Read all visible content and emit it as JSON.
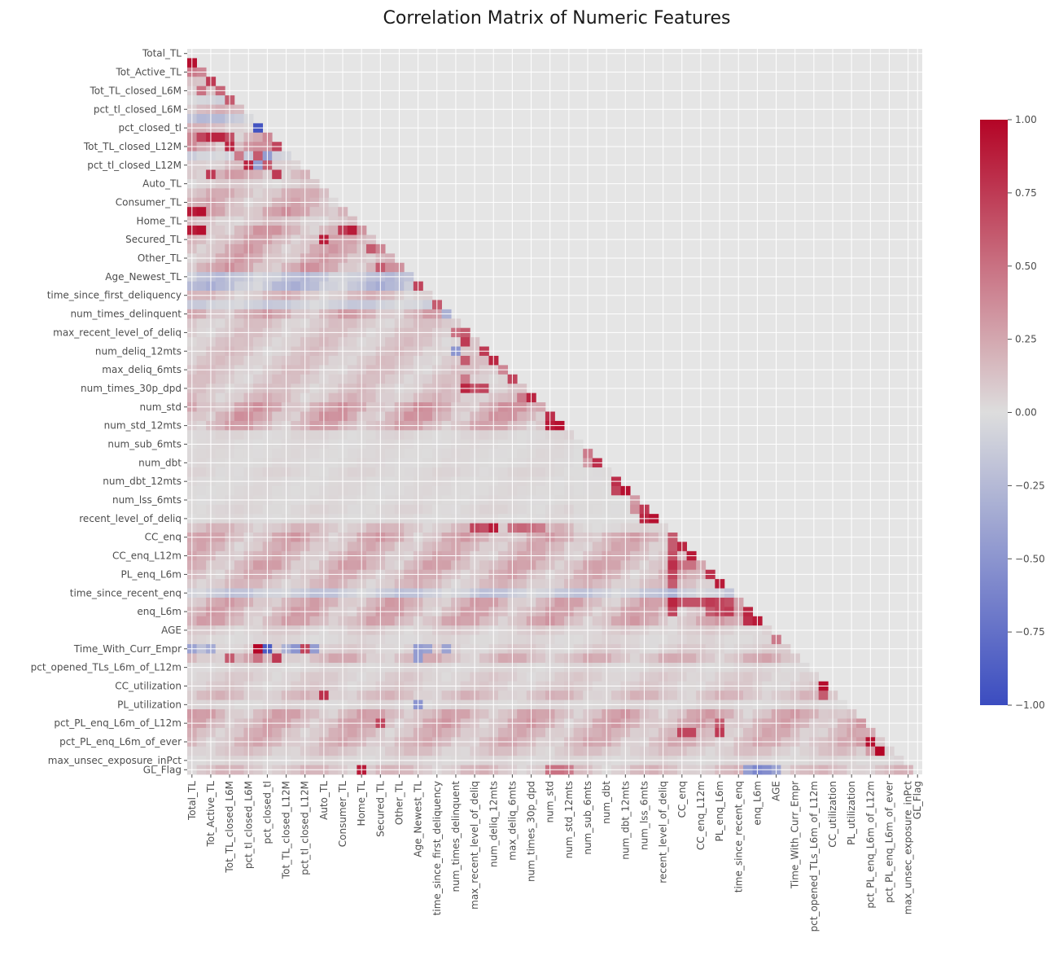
{
  "chart_data": {
    "type": "heatmap",
    "title": "Correlation Matrix of Numeric Features",
    "mask": "upper-triangle",
    "n_features": 78,
    "grid": true,
    "vmin": -1.0,
    "vmax": 1.0,
    "colormap": "coolwarm",
    "colors": {
      "low": "#3b4cc0",
      "mid": "#dddddd",
      "high": "#b40426",
      "background": "#e5e5e5"
    },
    "colorbar": {
      "ticks": [
        1.0,
        0.75,
        0.5,
        0.25,
        0.0,
        -0.25,
        -0.5,
        -0.75,
        -1.0
      ],
      "tick_labels": [
        "1.00",
        "0.75",
        "0.50",
        "0.25",
        "0.00",
        "−0.25",
        "−0.50",
        "−0.75",
        "−1.00"
      ]
    },
    "visible_labels": [
      {
        "index": 0,
        "name": "Total_TL"
      },
      {
        "index": 2,
        "name": "Tot_Active_TL"
      },
      {
        "index": 4,
        "name": "Tot_TL_closed_L6M"
      },
      {
        "index": 6,
        "name": "pct_tl_closed_L6M"
      },
      {
        "index": 8,
        "name": "pct_closed_tl"
      },
      {
        "index": 10,
        "name": "Tot_TL_closed_L12M"
      },
      {
        "index": 12,
        "name": "pct_tl_closed_L12M"
      },
      {
        "index": 14,
        "name": "Auto_TL"
      },
      {
        "index": 16,
        "name": "Consumer_TL"
      },
      {
        "index": 18,
        "name": "Home_TL"
      },
      {
        "index": 20,
        "name": "Secured_TL"
      },
      {
        "index": 22,
        "name": "Other_TL"
      },
      {
        "index": 24,
        "name": "Age_Newest_TL"
      },
      {
        "index": 26,
        "name": "time_since_first_deliquency"
      },
      {
        "index": 28,
        "name": "num_times_delinquent"
      },
      {
        "index": 30,
        "name": "max_recent_level_of_deliq"
      },
      {
        "index": 32,
        "name": "num_deliq_12mts"
      },
      {
        "index": 34,
        "name": "max_deliq_6mts"
      },
      {
        "index": 36,
        "name": "num_times_30p_dpd"
      },
      {
        "index": 38,
        "name": "num_std"
      },
      {
        "index": 40,
        "name": "num_std_12mts"
      },
      {
        "index": 42,
        "name": "num_sub_6mts"
      },
      {
        "index": 44,
        "name": "num_dbt"
      },
      {
        "index": 46,
        "name": "num_dbt_12mts"
      },
      {
        "index": 48,
        "name": "num_lss_6mts"
      },
      {
        "index": 50,
        "name": "recent_level_of_deliq"
      },
      {
        "index": 52,
        "name": "CC_enq"
      },
      {
        "index": 54,
        "name": "CC_enq_L12m"
      },
      {
        "index": 56,
        "name": "PL_enq_L6m"
      },
      {
        "index": 58,
        "name": "time_since_recent_enq"
      },
      {
        "index": 60,
        "name": "enq_L6m"
      },
      {
        "index": 62,
        "name": "AGE"
      },
      {
        "index": 64,
        "name": "Time_With_Curr_Empr"
      },
      {
        "index": 66,
        "name": "pct_opened_TLs_L6m_of_L12m"
      },
      {
        "index": 68,
        "name": "CC_utilization"
      },
      {
        "index": 70,
        "name": "PL_utilization"
      },
      {
        "index": 72,
        "name": "pct_PL_enq_L6m_of_L12m"
      },
      {
        "index": 74,
        "name": "pct_PL_enq_L6m_of_ever"
      },
      {
        "index": 76,
        "name": "max_unsec_exposure_inPct"
      },
      {
        "index": 77,
        "name": "GL_Flag"
      }
    ],
    "strong_cells": [
      {
        "row": 1,
        "col": 0,
        "value": 0.95
      },
      {
        "row": 2,
        "col": 0,
        "value": 0.45
      },
      {
        "row": 2,
        "col": 1,
        "value": 0.4
      },
      {
        "row": 3,
        "col": 2,
        "value": 0.75
      },
      {
        "row": 4,
        "col": 1,
        "value": 0.5
      },
      {
        "row": 4,
        "col": 3,
        "value": 0.55
      },
      {
        "row": 5,
        "col": 4,
        "value": 0.6
      },
      {
        "row": 8,
        "col": 7,
        "value": -0.95
      },
      {
        "row": 9,
        "col": 1,
        "value": 0.7
      },
      {
        "row": 9,
        "col": 2,
        "value": 0.85
      },
      {
        "row": 9,
        "col": 3,
        "value": 0.85
      },
      {
        "row": 9,
        "col": 4,
        "value": 0.65
      },
      {
        "row": 10,
        "col": 4,
        "value": 0.85
      },
      {
        "row": 10,
        "col": 9,
        "value": 0.7
      },
      {
        "row": 11,
        "col": 5,
        "value": 0.45
      },
      {
        "row": 11,
        "col": 7,
        "value": 0.6
      },
      {
        "row": 11,
        "col": 8,
        "value": -0.45
      },
      {
        "row": 12,
        "col": 6,
        "value": 0.85
      },
      {
        "row": 12,
        "col": 7,
        "value": -0.45
      },
      {
        "row": 12,
        "col": 8,
        "value": 0.6
      },
      {
        "row": 13,
        "col": 2,
        "value": 0.75
      },
      {
        "row": 13,
        "col": 9,
        "value": 0.75
      },
      {
        "row": 17,
        "col": 0,
        "value": 0.9
      },
      {
        "row": 17,
        "col": 1,
        "value": 0.95
      },
      {
        "row": 19,
        "col": 0,
        "value": 0.9
      },
      {
        "row": 19,
        "col": 1,
        "value": 0.95
      },
      {
        "row": 19,
        "col": 16,
        "value": 0.75
      },
      {
        "row": 19,
        "col": 17,
        "value": 0.9
      },
      {
        "row": 20,
        "col": 14,
        "value": 0.9
      },
      {
        "row": 21,
        "col": 19,
        "value": 0.6
      },
      {
        "row": 21,
        "col": 20,
        "value": 0.4
      },
      {
        "row": 23,
        "col": 20,
        "value": 0.6
      },
      {
        "row": 25,
        "col": 24,
        "value": 0.7
      },
      {
        "row": 27,
        "col": 26,
        "value": 0.6
      },
      {
        "row": 28,
        "col": 27,
        "value": -0.3
      },
      {
        "row": 30,
        "col": 29,
        "value": 0.6
      },
      {
        "row": 30,
        "col": 28,
        "value": 0.5
      },
      {
        "row": 31,
        "col": 29,
        "value": 0.75
      },
      {
        "row": 32,
        "col": 31,
        "value": 0.75
      },
      {
        "row": 32,
        "col": 28,
        "value": -0.5
      },
      {
        "row": 33,
        "col": 32,
        "value": 0.85
      },
      {
        "row": 33,
        "col": 29,
        "value": 0.6
      },
      {
        "row": 34,
        "col": 33,
        "value": 0.4
      },
      {
        "row": 35,
        "col": 29,
        "value": 0.45
      },
      {
        "row": 35,
        "col": 34,
        "value": 0.7
      },
      {
        "row": 36,
        "col": 29,
        "value": 0.85
      },
      {
        "row": 36,
        "col": 30,
        "value": 0.65
      },
      {
        "row": 36,
        "col": 31,
        "value": 0.7
      },
      {
        "row": 37,
        "col": 36,
        "value": 0.85
      },
      {
        "row": 37,
        "col": 35,
        "value": 0.45
      },
      {
        "row": 38,
        "col": 37,
        "value": 0.25
      },
      {
        "row": 39,
        "col": 38,
        "value": 0.8
      },
      {
        "row": 40,
        "col": 38,
        "value": 0.9
      },
      {
        "row": 40,
        "col": 39,
        "value": 0.95
      },
      {
        "row": 43,
        "col": 42,
        "value": 0.45
      },
      {
        "row": 44,
        "col": 42,
        "value": 0.3
      },
      {
        "row": 44,
        "col": 43,
        "value": 0.8
      },
      {
        "row": 46,
        "col": 45,
        "value": 0.8
      },
      {
        "row": 47,
        "col": 46,
        "value": 0.95
      },
      {
        "row": 47,
        "col": 45,
        "value": 0.7
      },
      {
        "row": 48,
        "col": 47,
        "value": 0.3
      },
      {
        "row": 49,
        "col": 48,
        "value": 0.75
      },
      {
        "row": 49,
        "col": 47,
        "value": 0.35
      },
      {
        "row": 50,
        "col": 48,
        "value": 0.85
      },
      {
        "row": 50,
        "col": 49,
        "value": 0.95
      },
      {
        "row": 51,
        "col": 31,
        "value": 0.65
      },
      {
        "row": 51,
        "col": 32,
        "value": 0.9
      },
      {
        "row": 51,
        "col": 30,
        "value": 0.7
      },
      {
        "row": 51,
        "col": 34,
        "value": 0.5
      },
      {
        "row": 51,
        "col": 35,
        "value": 0.55
      },
      {
        "row": 51,
        "col": 36,
        "value": 0.5
      },
      {
        "row": 51,
        "col": 37,
        "value": 0.45
      },
      {
        "row": 52,
        "col": 51,
        "value": 0.6
      },
      {
        "row": 53,
        "col": 51,
        "value": 0.6
      },
      {
        "row": 53,
        "col": 52,
        "value": 0.85
      },
      {
        "row": 54,
        "col": 51,
        "value": 0.65
      },
      {
        "row": 54,
        "col": 53,
        "value": 0.9
      },
      {
        "row": 55,
        "col": 51,
        "value": 0.8
      },
      {
        "row": 55,
        "col": 52,
        "value": 0.5
      },
      {
        "row": 55,
        "col": 53,
        "value": 0.5
      },
      {
        "row": 56,
        "col": 51,
        "value": 0.7
      },
      {
        "row": 56,
        "col": 55,
        "value": 0.8
      },
      {
        "row": 57,
        "col": 51,
        "value": 0.6
      },
      {
        "row": 57,
        "col": 56,
        "value": 0.9
      },
      {
        "row": 58,
        "col": 51,
        "value": -0.3
      },
      {
        "row": 59,
        "col": 51,
        "value": 0.85
      },
      {
        "row": 59,
        "col": 52,
        "value": 0.65
      },
      {
        "row": 59,
        "col": 53,
        "value": 0.65
      },
      {
        "row": 59,
        "col": 54,
        "value": 0.65
      },
      {
        "row": 59,
        "col": 55,
        "value": 0.75
      },
      {
        "row": 59,
        "col": 56,
        "value": 0.7
      },
      {
        "row": 59,
        "col": 57,
        "value": 0.65
      },
      {
        "row": 60,
        "col": 51,
        "value": 0.7
      },
      {
        "row": 60,
        "col": 55,
        "value": 0.6
      },
      {
        "row": 60,
        "col": 56,
        "value": 0.7
      },
      {
        "row": 60,
        "col": 57,
        "value": 0.75
      },
      {
        "row": 60,
        "col": 58,
        "value": 0.3
      },
      {
        "row": 60,
        "col": 59,
        "value": 0.85
      },
      {
        "row": 61,
        "col": 59,
        "value": 0.8
      },
      {
        "row": 61,
        "col": 60,
        "value": 0.9
      },
      {
        "row": 63,
        "col": 62,
        "value": 0.45
      },
      {
        "row": 64,
        "col": 0,
        "value": -0.4
      },
      {
        "row": 64,
        "col": 1,
        "value": -0.2
      },
      {
        "row": 64,
        "col": 2,
        "value": -0.35
      },
      {
        "row": 64,
        "col": 7,
        "value": 1.0
      },
      {
        "row": 64,
        "col": 8,
        "value": -0.9
      },
      {
        "row": 64,
        "col": 10,
        "value": -0.3
      },
      {
        "row": 64,
        "col": 11,
        "value": -0.5
      },
      {
        "row": 64,
        "col": 12,
        "value": 0.7
      },
      {
        "row": 64,
        "col": 13,
        "value": -0.45
      },
      {
        "row": 64,
        "col": 24,
        "value": -0.45
      },
      {
        "row": 64,
        "col": 25,
        "value": -0.4
      },
      {
        "row": 64,
        "col": 27,
        "value": -0.4
      },
      {
        "row": 65,
        "col": 4,
        "value": 0.6
      },
      {
        "row": 65,
        "col": 7,
        "value": 0.5
      },
      {
        "row": 65,
        "col": 9,
        "value": 0.75
      },
      {
        "row": 65,
        "col": 24,
        "value": -0.45
      },
      {
        "row": 67,
        "col": 66,
        "value": 0.05
      },
      {
        "row": 68,
        "col": 67,
        "value": 0.95
      },
      {
        "row": 69,
        "col": 14,
        "value": 0.8
      },
      {
        "row": 69,
        "col": 67,
        "value": 0.6
      },
      {
        "row": 70,
        "col": 24,
        "value": -0.5
      },
      {
        "row": 72,
        "col": 20,
        "value": 0.7
      },
      {
        "row": 72,
        "col": 56,
        "value": 0.6
      },
      {
        "row": 73,
        "col": 52,
        "value": 0.7
      },
      {
        "row": 73,
        "col": 53,
        "value": 0.7
      },
      {
        "row": 73,
        "col": 56,
        "value": 0.75
      },
      {
        "row": 74,
        "col": 71,
        "value": 0.3
      },
      {
        "row": 74,
        "col": 72,
        "value": 0.95
      },
      {
        "row": 75,
        "col": 73,
        "value": 1.0
      },
      {
        "row": 75,
        "col": 72,
        "value": 0.3
      },
      {
        "row": 77,
        "col": 18,
        "value": 0.9
      },
      {
        "row": 77,
        "col": 38,
        "value": 0.5
      },
      {
        "row": 77,
        "col": 39,
        "value": 0.5
      },
      {
        "row": 77,
        "col": 40,
        "value": 0.45
      },
      {
        "row": 77,
        "col": 59,
        "value": -0.45
      },
      {
        "row": 77,
        "col": 60,
        "value": -0.6
      },
      {
        "row": 77,
        "col": 61,
        "value": -0.55
      },
      {
        "row": 77,
        "col": 62,
        "value": -0.4
      }
    ],
    "row_bands": [
      {
        "row": 1,
        "value": 0.35
      },
      {
        "row": 2,
        "value": 0.35
      },
      {
        "row": 3,
        "value": 0.4
      },
      {
        "row": 4,
        "value": 0.3
      },
      {
        "row": 5,
        "value": -0.1
      },
      {
        "row": 6,
        "value": 0.2
      },
      {
        "row": 7,
        "value": -0.25
      },
      {
        "row": 8,
        "value": 0.2
      },
      {
        "row": 9,
        "value": 0.4
      },
      {
        "row": 10,
        "value": 0.4
      },
      {
        "row": 11,
        "value": -0.15
      },
      {
        "row": 12,
        "value": 0.2
      },
      {
        "row": 13,
        "value": 0.3
      },
      {
        "row": 14,
        "value": 0.1
      },
      {
        "row": 15,
        "value": 0.25
      },
      {
        "row": 16,
        "value": 0.25
      },
      {
        "row": 17,
        "value": 0.35
      },
      {
        "row": 18,
        "value": 0.15
      },
      {
        "row": 19,
        "value": 0.35
      },
      {
        "row": 20,
        "value": 0.3
      },
      {
        "row": 21,
        "value": 0.3
      },
      {
        "row": 22,
        "value": 0.3
      },
      {
        "row": 23,
        "value": 0.35
      },
      {
        "row": 24,
        "value": -0.25
      },
      {
        "row": 25,
        "value": -0.3
      },
      {
        "row": 26,
        "value": 0.2
      },
      {
        "row": 27,
        "value": -0.15
      },
      {
        "row": 28,
        "value": 0.3
      },
      {
        "row": 29,
        "value": 0.15
      },
      {
        "row": 30,
        "value": 0.15
      },
      {
        "row": 31,
        "value": 0.15
      },
      {
        "row": 32,
        "value": 0.15
      },
      {
        "row": 33,
        "value": 0.15
      },
      {
        "row": 34,
        "value": 0.15
      },
      {
        "row": 35,
        "value": 0.15
      },
      {
        "row": 36,
        "value": 0.15
      },
      {
        "row": 37,
        "value": 0.2
      },
      {
        "row": 38,
        "value": 0.35
      },
      {
        "row": 39,
        "value": 0.35
      },
      {
        "row": 40,
        "value": 0.3
      },
      {
        "row": 41,
        "value": 0.05
      },
      {
        "row": 42,
        "value": 0.03
      },
      {
        "row": 43,
        "value": 0.03
      },
      {
        "row": 44,
        "value": 0.03
      },
      {
        "row": 45,
        "value": 0.05
      },
      {
        "row": 46,
        "value": 0.03
      },
      {
        "row": 47,
        "value": 0.03
      },
      {
        "row": 48,
        "value": 0.03
      },
      {
        "row": 49,
        "value": 0.05
      },
      {
        "row": 50,
        "value": 0.03
      },
      {
        "row": 51,
        "value": 0.2
      },
      {
        "row": 52,
        "value": 0.3
      },
      {
        "row": 53,
        "value": 0.25
      },
      {
        "row": 54,
        "value": 0.25
      },
      {
        "row": 55,
        "value": 0.3
      },
      {
        "row": 56,
        "value": 0.25
      },
      {
        "row": 57,
        "value": 0.2
      },
      {
        "row": 58,
        "value": -0.2
      },
      {
        "row": 59,
        "value": 0.3
      },
      {
        "row": 60,
        "value": 0.3
      },
      {
        "row": 61,
        "value": 0.3
      },
      {
        "row": 62,
        "value": 0.1
      },
      {
        "row": 63,
        "value": 0.05
      },
      {
        "row": 64,
        "value": 0.1
      },
      {
        "row": 65,
        "value": 0.25
      },
      {
        "row": 66,
        "value": 0.05
      },
      {
        "row": 67,
        "value": 0.1
      },
      {
        "row": 68,
        "value": 0.1
      },
      {
        "row": 69,
        "value": 0.2
      },
      {
        "row": 70,
        "value": 0.05
      },
      {
        "row": 71,
        "value": 0.3
      },
      {
        "row": 72,
        "value": 0.3
      },
      {
        "row": 73,
        "value": 0.25
      },
      {
        "row": 74,
        "value": 0.25
      },
      {
        "row": 75,
        "value": 0.15
      },
      {
        "row": 76,
        "value": 0.05
      },
      {
        "row": 77,
        "value": 0.2
      }
    ]
  }
}
